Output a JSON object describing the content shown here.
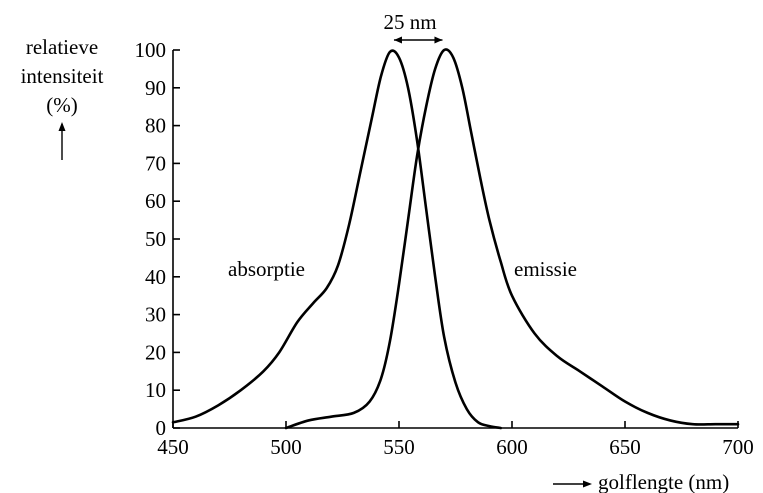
{
  "chart_data": {
    "type": "line",
    "ylabel_lines": [
      "relatieve",
      "intensiteit",
      "(%)"
    ],
    "xlabel": "golflengte (nm)",
    "xlim": [
      450,
      700
    ],
    "ylim": [
      0,
      100
    ],
    "x_ticks": [
      450,
      500,
      550,
      600,
      650,
      700
    ],
    "y_ticks": [
      0,
      10,
      20,
      30,
      40,
      50,
      60,
      70,
      80,
      90,
      100
    ],
    "grid": false,
    "series": [
      {
        "name": "absorptie",
        "x": [
          450,
          460,
          470,
          480,
          490,
          497,
          505,
          512,
          518,
          523,
          528,
          533,
          538,
          542,
          546,
          550,
          554,
          558,
          562,
          566,
          570,
          575,
          580,
          585,
          590,
          595
        ],
        "y": [
          1.5,
          3,
          6,
          10,
          15,
          20,
          28,
          33,
          37,
          43,
          54,
          68,
          82,
          93,
          99.5,
          98,
          90,
          76,
          58,
          40,
          24,
          12,
          5,
          1.5,
          0.5,
          0
        ]
      },
      {
        "name": "emissie",
        "x": [
          500,
          510,
          520,
          530,
          537,
          542,
          546,
          550,
          554,
          558,
          562,
          566,
          570,
          574,
          578,
          582,
          586,
          590,
          595,
          600,
          610,
          620,
          630,
          640,
          650,
          660,
          670,
          680,
          690,
          700
        ],
        "y": [
          0,
          2,
          3,
          4,
          7,
          13,
          23,
          38,
          55,
          72,
          85,
          95,
          100,
          98,
          90,
          78,
          66,
          55,
          44,
          35,
          25,
          19,
          15,
          11,
          7,
          4,
          2,
          1,
          1,
          1
        ]
      }
    ],
    "annotations": [
      {
        "text": "25 nm",
        "x1": 546,
        "x2": 571,
        "y": 100
      }
    ]
  }
}
